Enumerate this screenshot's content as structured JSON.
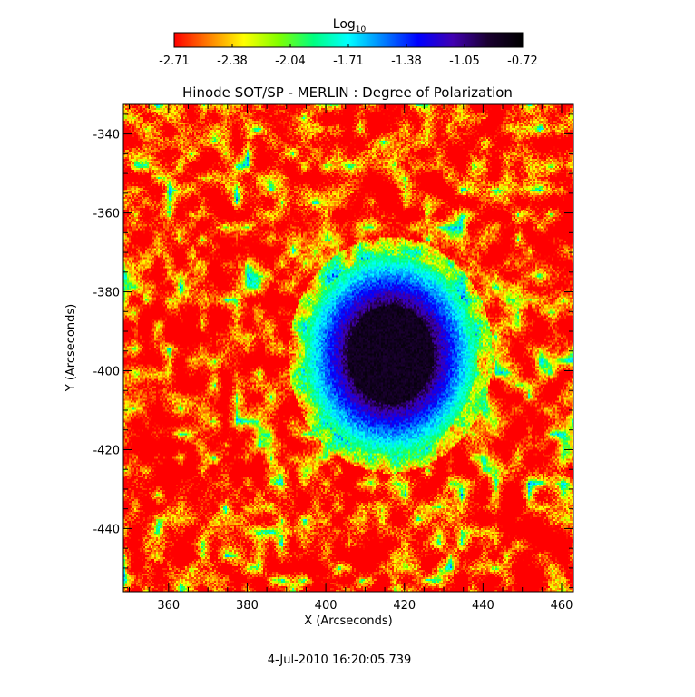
{
  "chart_data": {
    "type": "heatmap",
    "title": "Hinode SOT/SP - MERLIN : Degree of Polarization",
    "xlabel": "X (Arcseconds)",
    "ylabel": "Y (Arcseconds)",
    "xlim": [
      348.5,
      463
    ],
    "ylim": [
      -456,
      -332.5
    ],
    "x_ticks": [
      360,
      380,
      400,
      420,
      440,
      460
    ],
    "y_ticks": [
      -340,
      -360,
      -380,
      -400,
      -420,
      -440
    ],
    "colorbar": {
      "title": "Log",
      "title_sub": "10",
      "range": [
        -2.71,
        -0.72
      ],
      "ticks": [
        "-2.71",
        "-2.38",
        "-2.04",
        "-1.71",
        "-1.38",
        "-1.05",
        "-0.72"
      ],
      "colormap": [
        "#ff0000",
        "#ff8000",
        "#ffff00",
        "#80ff00",
        "#00ff80",
        "#00ffff",
        "#0080ff",
        "#0000ff",
        "#4000b0",
        "#1a0030",
        "#000000"
      ]
    },
    "spot": {
      "center_x": 416.5,
      "center_y": -396,
      "umbra_value": -0.85,
      "background_value": -2.65
    },
    "timestamp": "4-Jul-2010 16:20:05.739"
  }
}
